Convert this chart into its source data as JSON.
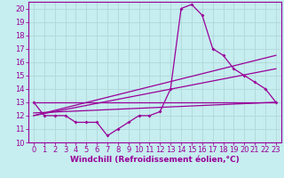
{
  "title": "",
  "xlabel": "Windchill (Refroidissement éolien,°C)",
  "ylabel": "",
  "bg_color": "#c6edef",
  "line_color": "#990099",
  "grid_color": "#b0d8d8",
  "xlim": [
    -0.5,
    23.5
  ],
  "ylim": [
    10,
    20.5
  ],
  "xticks": [
    0,
    1,
    2,
    3,
    4,
    5,
    6,
    7,
    8,
    9,
    10,
    11,
    12,
    13,
    14,
    15,
    16,
    17,
    18,
    19,
    20,
    21,
    22,
    23
  ],
  "yticks": [
    10,
    11,
    12,
    13,
    14,
    15,
    16,
    17,
    18,
    19,
    20
  ],
  "series1_x": [
    0,
    1,
    2,
    3,
    4,
    5,
    6,
    7,
    8,
    9,
    10,
    11,
    12,
    13,
    14,
    15,
    16,
    17,
    18,
    19,
    20,
    21,
    22,
    23
  ],
  "series1_y": [
    13,
    12,
    12,
    12,
    11.5,
    11.5,
    11.5,
    10.5,
    11,
    11.5,
    12,
    12,
    12.3,
    14,
    20,
    20.3,
    19.5,
    17,
    16.5,
    15.5,
    15,
    14.5,
    14,
    13
  ],
  "line1_x": [
    0,
    23
  ],
  "line1_y": [
    13,
    13
  ],
  "line2_x": [
    0,
    23
  ],
  "line2_y": [
    12,
    16.5
  ],
  "line3_x": [
    0,
    23
  ],
  "line3_y": [
    12,
    15.5
  ],
  "line4_x": [
    0,
    23
  ],
  "line4_y": [
    12.2,
    13.0
  ],
  "marker": "D",
  "marker_size": 2.0,
  "line_width": 0.9,
  "xlabel_fontsize": 6.5,
  "tick_fontsize": 6.0
}
